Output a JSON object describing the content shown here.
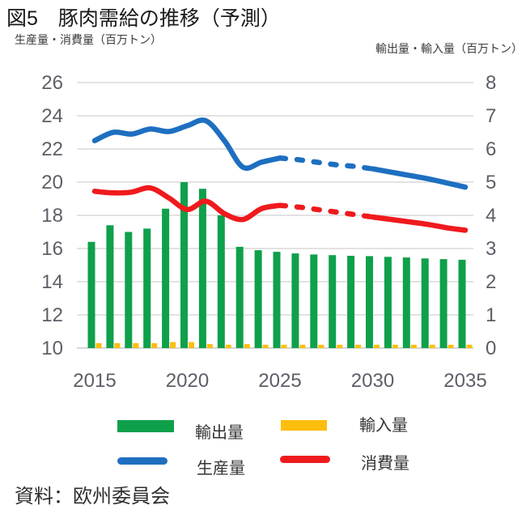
{
  "header": {
    "title": "図5　豚肉需給の推移（予測）",
    "left_axis_title": "生産量・消費量（百万トン）",
    "right_axis_title": "輸出量・輸入量（百万トン）"
  },
  "source": "資料：欧州委員会",
  "colors": {
    "exports": "#0FA04B",
    "imports": "#FDBE0D",
    "production": "#1E6FC0",
    "consumption": "#EF1A1D",
    "grid": "#D8D8D8",
    "axis_line": "#C9C9C9",
    "axis_text": "#5E5E68"
  },
  "chart_data": {
    "type": "bar",
    "subtype": "combo-bar-line-dual-axis",
    "title": "図5　豚肉需給の推移（予測）",
    "ylabel_left": "生産量・消費量（百万トン）",
    "ylabel_right": "輸出量・輸入量（百万トン）",
    "x": [
      2015,
      2016,
      2017,
      2018,
      2019,
      2020,
      2021,
      2022,
      2023,
      2024,
      2025,
      2026,
      2027,
      2028,
      2029,
      2030,
      2031,
      2032,
      2033,
      2034,
      2035
    ],
    "x_ticks": [
      2015,
      2020,
      2025,
      2030,
      2035
    ],
    "left_axis": {
      "min": 10,
      "max": 26,
      "ticks": [
        26,
        24,
        22,
        20,
        18,
        16,
        14,
        12,
        10
      ]
    },
    "right_axis": {
      "min": 0,
      "max": 8,
      "ticks": [
        8,
        7,
        6,
        5,
        4,
        3,
        2,
        1,
        0
      ]
    },
    "grid": true,
    "forecast_dash_from": 2025,
    "forecast_dash_to": 2030,
    "series": [
      {
        "key": "exports",
        "name": "輸出量",
        "type": "bar",
        "axis": "right",
        "values": [
          3.2,
          3.7,
          3.5,
          3.6,
          4.2,
          5.0,
          4.8,
          4.0,
          3.05,
          2.95,
          2.9,
          2.85,
          2.82,
          2.8,
          2.78,
          2.77,
          2.75,
          2.73,
          2.7,
          2.68,
          2.66
        ]
      },
      {
        "key": "imports",
        "name": "輸入量",
        "type": "bar",
        "axis": "right",
        "values": [
          0.15,
          0.15,
          0.15,
          0.15,
          0.18,
          0.18,
          0.12,
          0.1,
          0.12,
          0.1,
          0.1,
          0.1,
          0.1,
          0.1,
          0.1,
          0.1,
          0.1,
          0.1,
          0.1,
          0.1,
          0.1
        ]
      },
      {
        "key": "production",
        "name": "生産量",
        "type": "line",
        "axis": "left",
        "values": [
          22.5,
          23.0,
          22.9,
          23.2,
          23.05,
          23.4,
          23.7,
          22.5,
          20.9,
          21.2,
          21.45,
          21.35,
          21.2,
          21.05,
          20.95,
          20.8,
          20.6,
          20.4,
          20.2,
          19.95,
          19.7
        ]
      },
      {
        "key": "consumption",
        "name": "消費量",
        "type": "line",
        "axis": "left",
        "values": [
          19.45,
          19.35,
          19.4,
          19.65,
          19.05,
          18.35,
          18.85,
          18.1,
          17.75,
          18.4,
          18.6,
          18.5,
          18.35,
          18.2,
          18.05,
          17.9,
          17.75,
          17.6,
          17.45,
          17.25,
          17.1
        ]
      }
    ]
  }
}
